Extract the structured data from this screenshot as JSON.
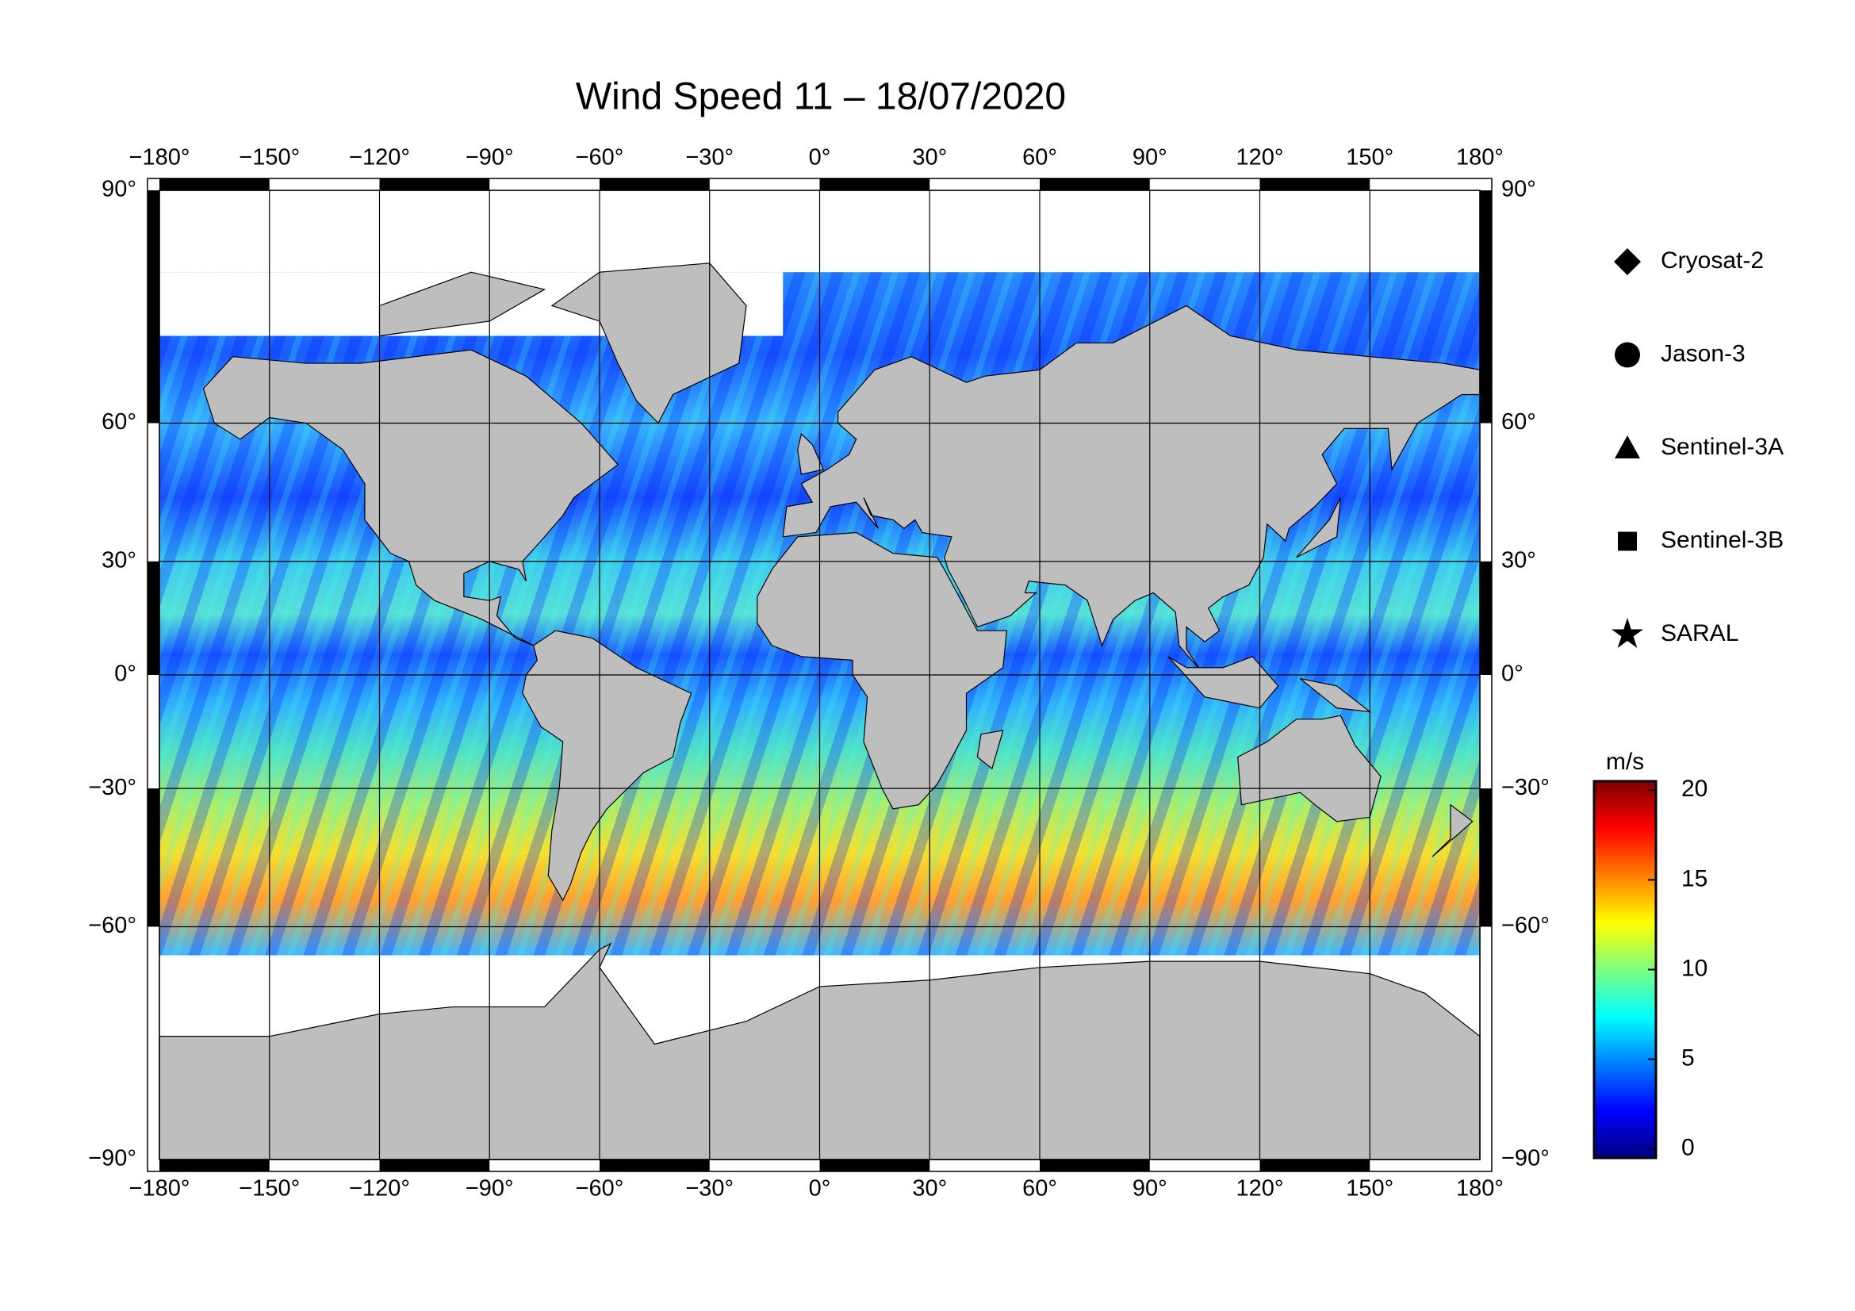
{
  "title": "Wind Speed 11 – 18/07/2020",
  "map": {
    "xlim": [
      -180,
      180
    ],
    "ylim": [
      -90,
      90
    ],
    "xticks": [
      {
        "value": -180,
        "label": "−180°"
      },
      {
        "value": -150,
        "label": "−150°"
      },
      {
        "value": -120,
        "label": "−120°"
      },
      {
        "value": -90,
        "label": "−90°"
      },
      {
        "value": -60,
        "label": "−60°"
      },
      {
        "value": -30,
        "label": "−30°"
      },
      {
        "value": 0,
        "label": "0°"
      },
      {
        "value": 30,
        "label": "30°"
      },
      {
        "value": 60,
        "label": "60°"
      },
      {
        "value": 90,
        "label": "90°"
      },
      {
        "value": 120,
        "label": "120°"
      },
      {
        "value": 150,
        "label": "150°"
      },
      {
        "value": 180,
        "label": "180°"
      }
    ],
    "yticks": [
      {
        "value": 90,
        "label": "90°"
      },
      {
        "value": 60,
        "label": "60°"
      },
      {
        "value": 30,
        "label": "30°"
      },
      {
        "value": 0,
        "label": "0°"
      },
      {
        "value": -30,
        "label": "−30°"
      },
      {
        "value": -60,
        "label": "−60°"
      },
      {
        "value": -90,
        "label": "−90°"
      }
    ]
  },
  "legend": {
    "items": [
      {
        "label": "Cryosat-2",
        "marker": "diamond"
      },
      {
        "label": "Jason-3",
        "marker": "circle"
      },
      {
        "label": "Sentinel-3A",
        "marker": "triangle"
      },
      {
        "label": "Sentinel-3B",
        "marker": "square"
      },
      {
        "label": "SARAL",
        "marker": "star"
      }
    ]
  },
  "colorbar": {
    "unit": "m/s",
    "clim": [
      -0.5,
      20.5
    ],
    "ticks": [
      0,
      5,
      10,
      15,
      20
    ],
    "colors": [
      "#00007f",
      "#0000ff",
      "#007fff",
      "#00ffff",
      "#7fff7f",
      "#ffff00",
      "#ff7f00",
      "#ff0000",
      "#7f0000"
    ]
  }
}
